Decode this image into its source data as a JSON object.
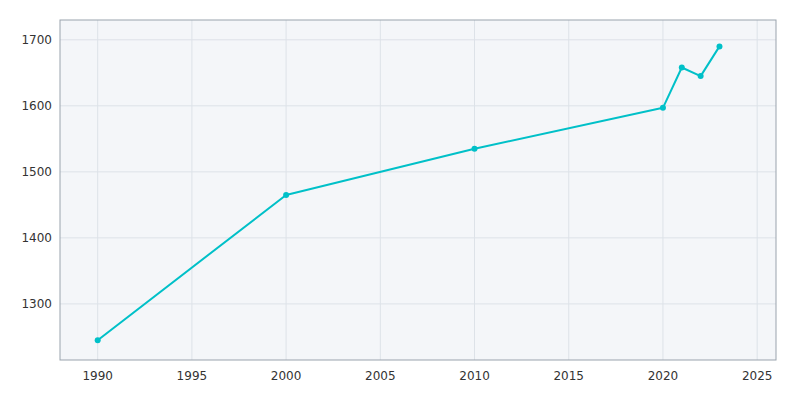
{
  "chart_data": {
    "type": "line",
    "x": [
      1990,
      2000,
      2010,
      2020,
      2021,
      2022,
      2023
    ],
    "values": [
      1245,
      1465,
      1535,
      1597,
      1658,
      1645,
      1690
    ],
    "color": "#00C0C8",
    "xlim": [
      1988,
      2026
    ],
    "ylim": [
      1215,
      1730
    ],
    "xticks": [
      1990,
      1995,
      2000,
      2005,
      2010,
      2015,
      2020,
      2025
    ],
    "yticks": [
      1300,
      1400,
      1500,
      1600,
      1700
    ],
    "grid": true
  }
}
